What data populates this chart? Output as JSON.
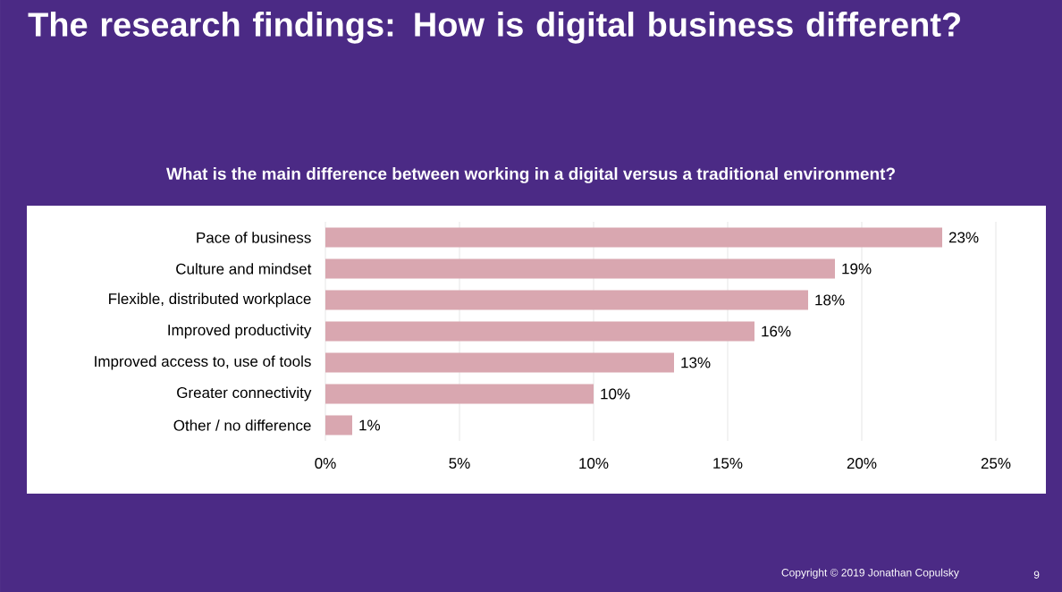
{
  "chart_data": {
    "type": "bar",
    "orientation": "horizontal",
    "title": "The research findings: How is digital business different?",
    "subtitle": "What is the main difference between working in a digital versus a traditional environment?",
    "categories": [
      "Pace of business",
      "Culture and mindset",
      "Flexible, distributed workplace",
      "Improved productivity",
      "Improved access to, use of tools",
      "Greater connectivity",
      "Other / no difference"
    ],
    "values": [
      23,
      19,
      18,
      16,
      13,
      10,
      1
    ],
    "value_labels": [
      "23%",
      "19%",
      "18%",
      "16%",
      "13%",
      "10%",
      "1%"
    ],
    "color": "#d9a7b0",
    "xlim": [
      0,
      25
    ],
    "xticks": [
      {
        "value": 0,
        "label": "0%"
      },
      {
        "value": 5,
        "label": "5%"
      },
      {
        "value": 10,
        "label": "10%"
      },
      {
        "value": 15,
        "label": "15%"
      },
      {
        "value": 20,
        "label": "20%"
      },
      {
        "value": 25,
        "label": "25%"
      }
    ],
    "grid": "x",
    "annotations": [
      "Copyright © 2019 Jonathan Copulsky",
      "9"
    ]
  }
}
